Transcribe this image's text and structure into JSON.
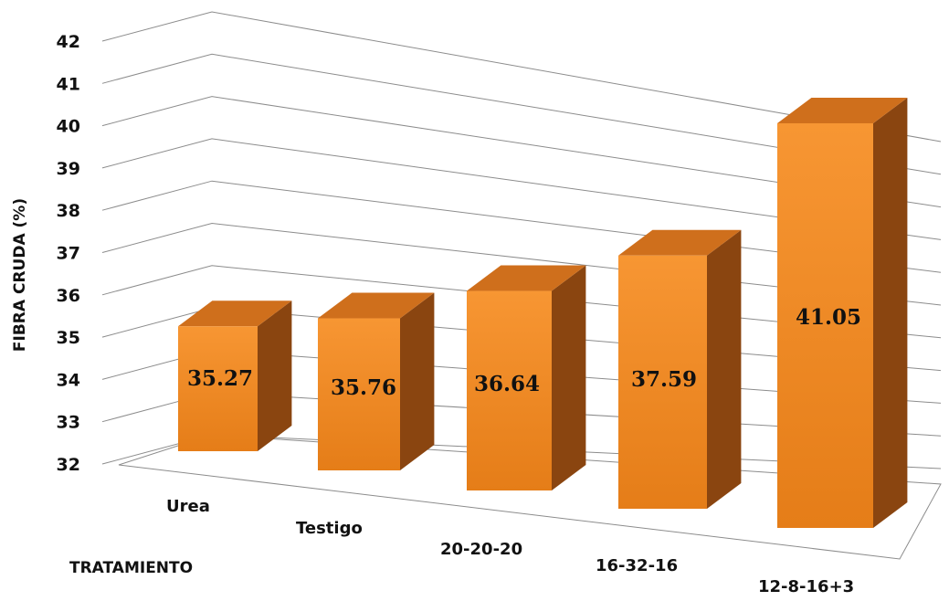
{
  "chart_data": {
    "type": "bar",
    "categories": [
      "Urea",
      "Testigo",
      "20-20-20",
      "16-32-16",
      "12-8-16+3"
    ],
    "values": [
      35.27,
      35.76,
      36.64,
      37.59,
      41.05
    ],
    "value_labels": [
      "35.27",
      "35.76",
      "36.64",
      "37.59",
      "41.05"
    ],
    "xlabel": "TRATAMIENTO",
    "ylabel": "FIBRA CRUDA (%)",
    "ylim": [
      32,
      42
    ],
    "yticks": [
      "32",
      "33",
      "34",
      "35",
      "36",
      "37",
      "38",
      "39",
      "40",
      "41",
      "42"
    ],
    "style": "3d-column",
    "grid": true,
    "colors": {
      "bar_front_top": "#f79633",
      "bar_front_bottom": "#e57d18",
      "bar_top": "#cf6f1c",
      "bar_side": "#8a4510",
      "grid": "#8c8c8c",
      "text": "#111111"
    }
  }
}
